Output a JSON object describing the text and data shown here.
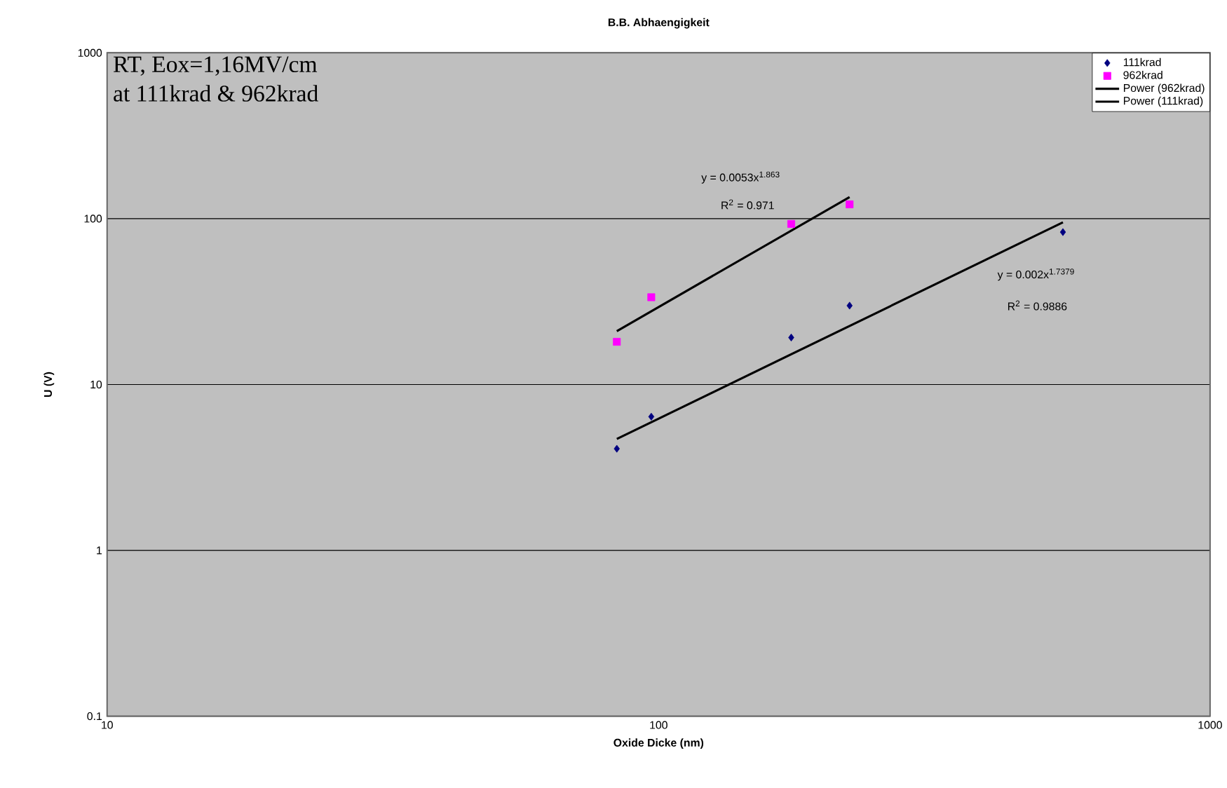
{
  "chart_data": {
    "type": "scatter",
    "title": "B.B. Abhaengigkeit",
    "xlabel": "Oxide Dicke (nm)",
    "ylabel": "U (V)",
    "log": "xy",
    "xlim": [
      10,
      1000
    ],
    "xticks": [
      10,
      100,
      1000
    ],
    "ylim": [
      0.1,
      1000
    ],
    "yticks": [
      0.1,
      1,
      10,
      100,
      1000
    ],
    "grid": "y",
    "legend": "top right",
    "series": [
      {
        "name": "111krad",
        "marker": "diamond",
        "color": "#000080",
        "x": [
          84,
          97,
          174,
          222,
          541
        ],
        "values": [
          4.1,
          6.4,
          19.2,
          29.9,
          83
        ]
      },
      {
        "name": "962krad",
        "marker": "square",
        "color": "#ff00ff",
        "x": [
          84,
          97,
          174,
          222
        ],
        "values": [
          18.1,
          33.6,
          93,
          122
        ]
      },
      {
        "name": "Power (962krad)",
        "type": "line",
        "marker": "none",
        "line_style": "solid",
        "color": "#000000",
        "x": [
          84,
          222
        ],
        "values": [
          21,
          135
        ]
      },
      {
        "name": "Power (111krad)",
        "type": "line",
        "marker": "none",
        "line_style": "solid",
        "color": "#000000",
        "x": [
          84,
          541
        ],
        "values": [
          4.7,
          95
        ]
      }
    ],
    "annotations": [
      "RT, Eox=1,16MV/cm",
      "at 111krad & 962krad",
      "y = 0.0053x$^{1.863}$",
      "R$^{2}$ = 0.971",
      "y = 0.002x$^{1.7379}$",
      "R$^{2}$ = 0.9886"
    ]
  }
}
